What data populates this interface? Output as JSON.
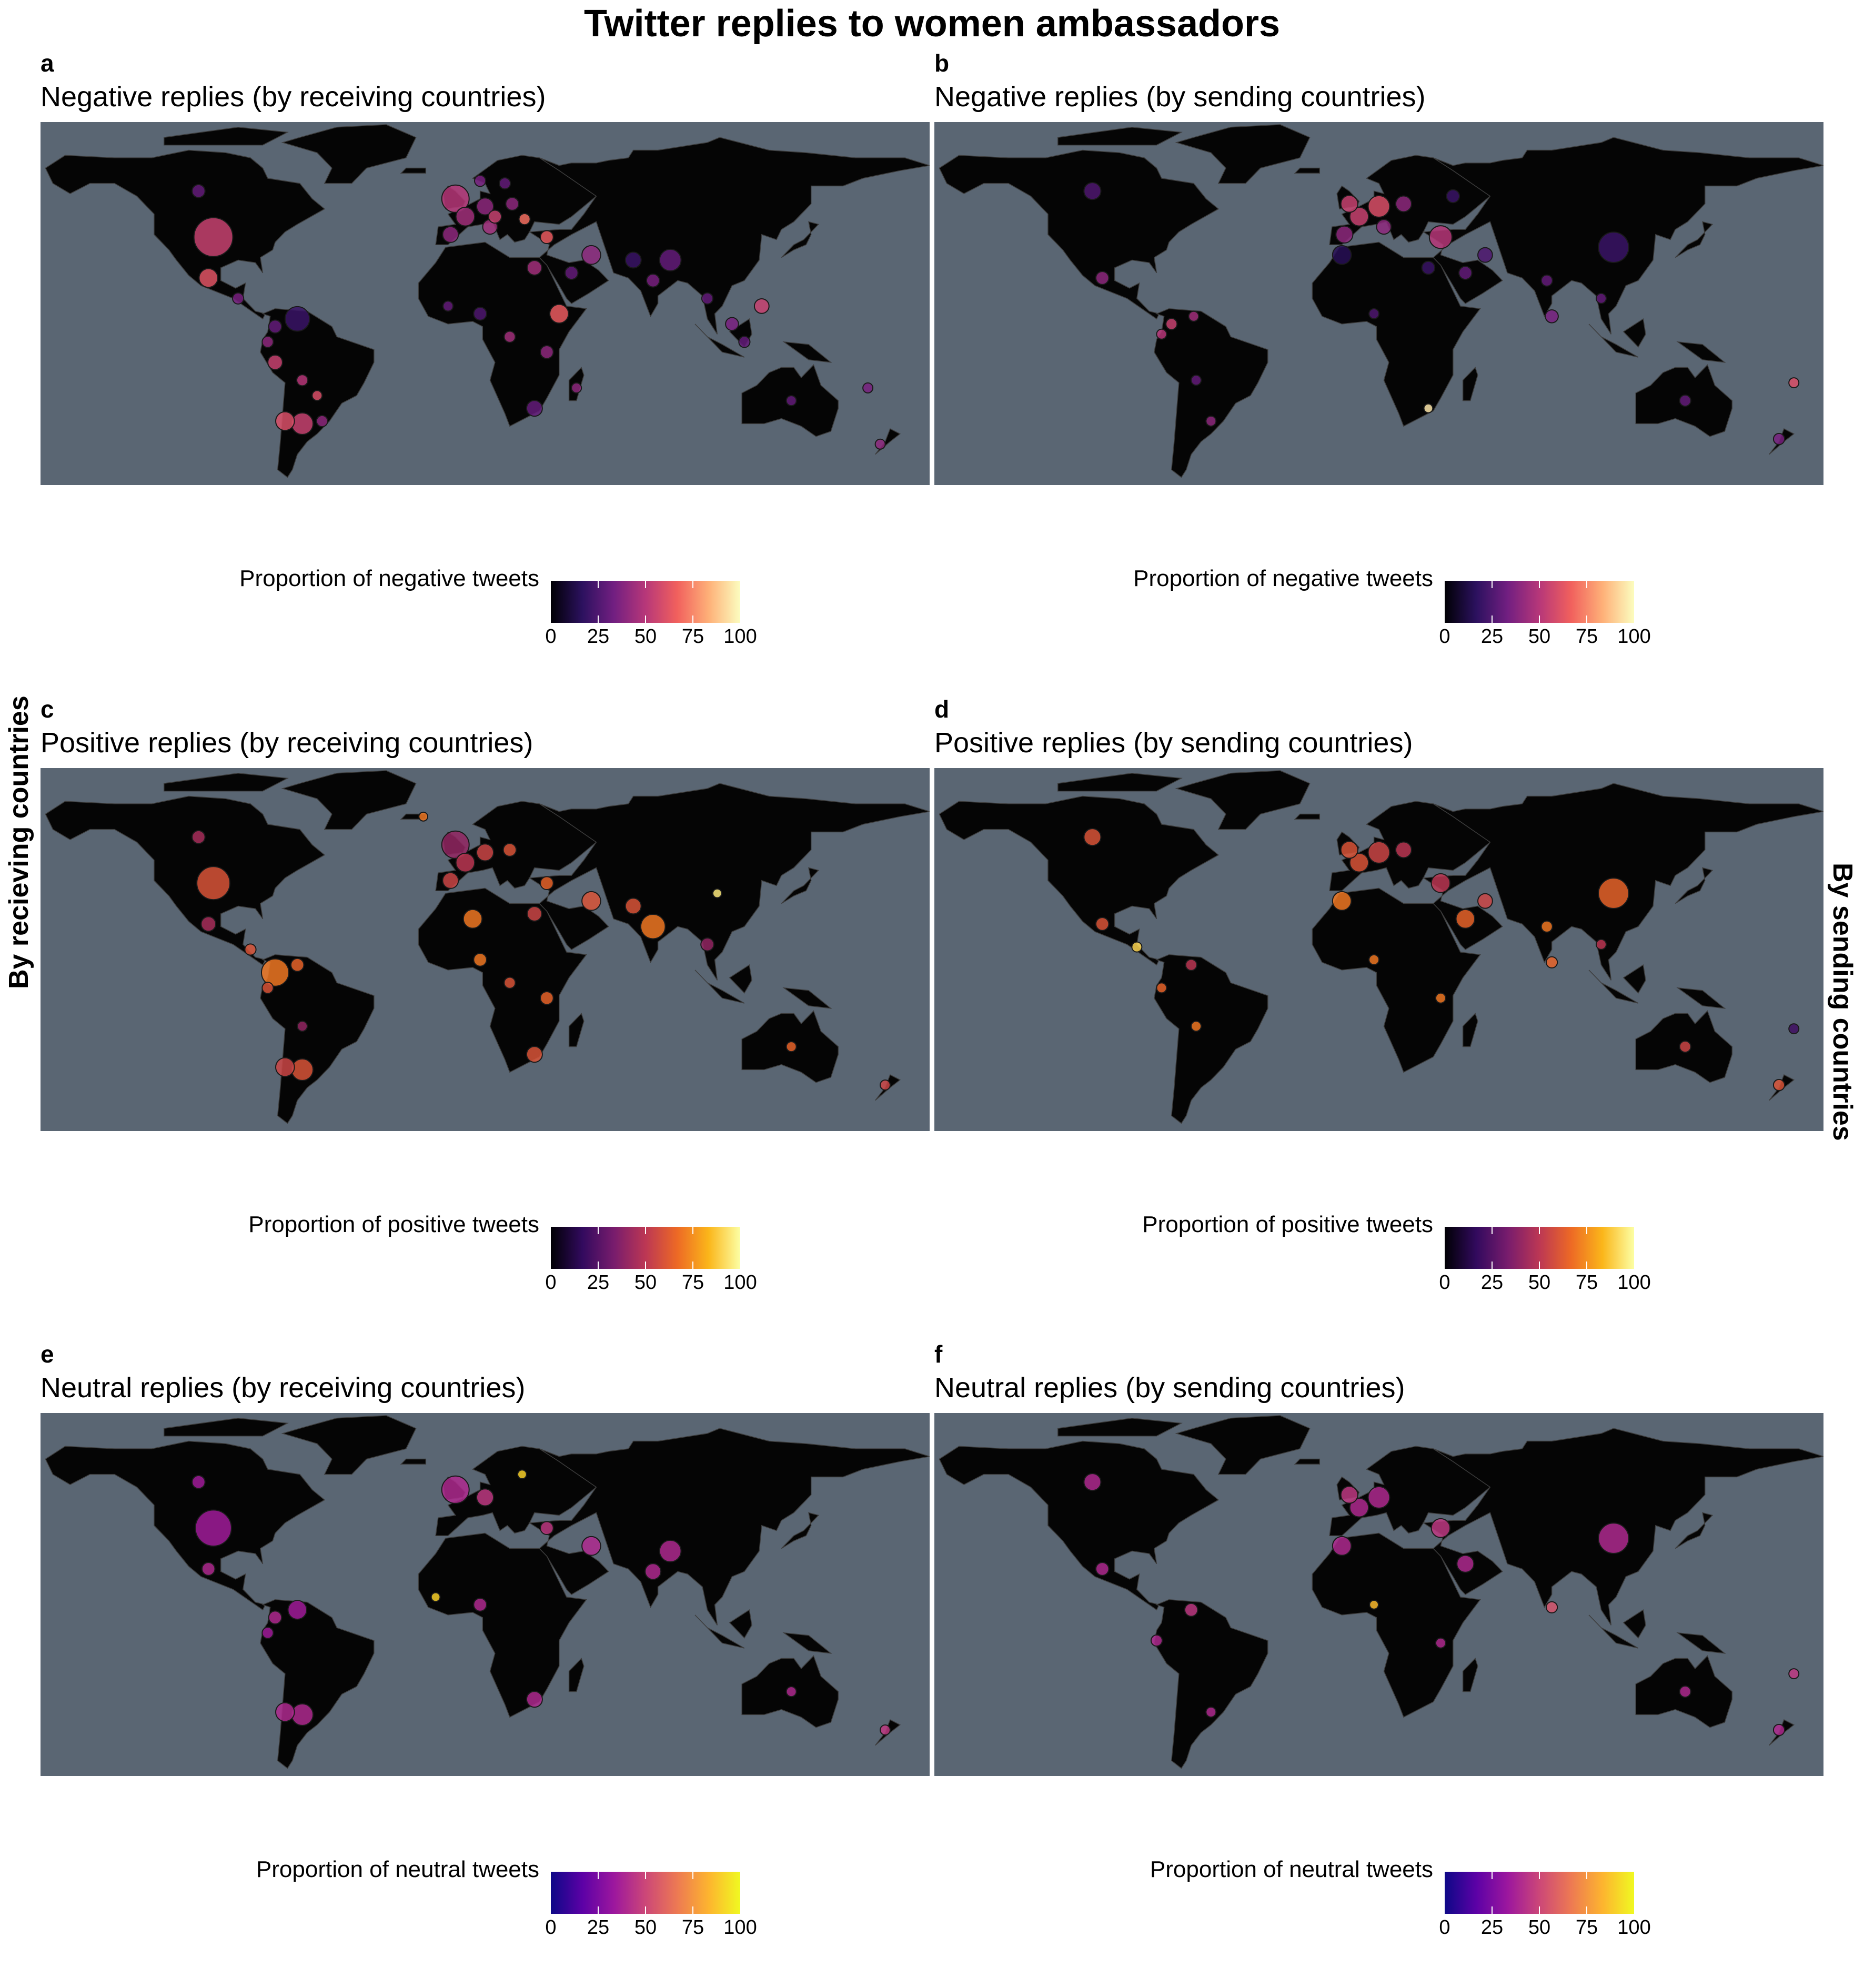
{
  "title": "Twitter replies to women ambassadors",
  "row_labels": {
    "left": "By recieving countries",
    "right": "By sending countries"
  },
  "colors": {
    "ocean": "#5a6673",
    "land": "#050505",
    "border": "#3c3c3c",
    "magma": [
      "#000004",
      "#2c115f",
      "#721f81",
      "#b73779",
      "#f1605d",
      "#feb078",
      "#fcfdbf"
    ],
    "inferno": [
      "#000004",
      "#320a5e",
      "#781c6d",
      "#bc3754",
      "#ed6925",
      "#fbb61a",
      "#fcffa4"
    ],
    "plasma": [
      "#0d0887",
      "#5c01a6",
      "#9c179e",
      "#cc4778",
      "#ed7953",
      "#fdb42f",
      "#f0f921"
    ]
  },
  "panels": [
    {
      "letter": "a",
      "title": "Negative replies (by receiving countries)",
      "palette": "magma",
      "legend_title": "Proportion of negative tweets",
      "ticks": [
        "0",
        "25",
        "50",
        "75",
        "100"
      ],
      "points": [
        {
          "lon": -100,
          "lat": 39,
          "value": 55,
          "size": 60
        },
        {
          "lon": -106,
          "lat": 57,
          "value": 30,
          "size": 15
        },
        {
          "lon": -102,
          "lat": 23,
          "value": 62,
          "size": 25
        },
        {
          "lon": -90,
          "lat": 15,
          "value": 35,
          "size": 12
        },
        {
          "lon": -66,
          "lat": 7,
          "value": 20,
          "size": 35
        },
        {
          "lon": -75,
          "lat": 4,
          "value": 30,
          "size": 15
        },
        {
          "lon": -78,
          "lat": -2,
          "value": 40,
          "size": 12
        },
        {
          "lon": -75,
          "lat": -10,
          "value": 55,
          "size": 18
        },
        {
          "lon": -64,
          "lat": -17,
          "value": 50,
          "size": 12
        },
        {
          "lon": -58,
          "lat": -23,
          "value": 60,
          "size": 10
        },
        {
          "lon": -71,
          "lat": -33,
          "value": 60,
          "size": 25
        },
        {
          "lon": -64,
          "lat": -34,
          "value": 55,
          "size": 30
        },
        {
          "lon": -56,
          "lat": -33,
          "value": 40,
          "size": 12
        },
        {
          "lon": -2,
          "lat": 54,
          "value": 50,
          "size": 40
        },
        {
          "lon": 2,
          "lat": 47,
          "value": 45,
          "size": 25
        },
        {
          "lon": 10,
          "lat": 51,
          "value": 40,
          "size": 22
        },
        {
          "lon": 14,
          "lat": 47,
          "value": 55,
          "size": 15
        },
        {
          "lon": 21,
          "lat": 52,
          "value": 40,
          "size": 15
        },
        {
          "lon": 26,
          "lat": 46,
          "value": 70,
          "size": 12
        },
        {
          "lon": 12,
          "lat": 43,
          "value": 45,
          "size": 18
        },
        {
          "lon": -4,
          "lat": 40,
          "value": 40,
          "size": 20
        },
        {
          "lon": 18,
          "lat": 60,
          "value": 30,
          "size": 12
        },
        {
          "lon": 8,
          "lat": 61,
          "value": 35,
          "size": 12
        },
        {
          "lon": 35,
          "lat": 39,
          "value": 65,
          "size": 15
        },
        {
          "lon": 30,
          "lat": 27,
          "value": 45,
          "size": 18
        },
        {
          "lon": 40,
          "lat": 9,
          "value": 65,
          "size": 25
        },
        {
          "lon": 45,
          "lat": 25,
          "value": 30,
          "size": 15
        },
        {
          "lon": 53,
          "lat": 32,
          "value": 40,
          "size": 25
        },
        {
          "lon": 70,
          "lat": 30,
          "value": 20,
          "size": 20
        },
        {
          "lon": 78,
          "lat": 22,
          "value": 35,
          "size": 15
        },
        {
          "lon": 85,
          "lat": 30,
          "value": 30,
          "size": 30
        },
        {
          "lon": 100,
          "lat": 15,
          "value": 30,
          "size": 12
        },
        {
          "lon": 110,
          "lat": 5,
          "value": 35,
          "size": 15
        },
        {
          "lon": 122,
          "lat": 12,
          "value": 55,
          "size": 18
        },
        {
          "lon": 115,
          "lat": -2,
          "value": 30,
          "size": 12
        },
        {
          "lon": 8,
          "lat": 9,
          "value": 25,
          "size": 15
        },
        {
          "lon": -5,
          "lat": 12,
          "value": 30,
          "size": 10
        },
        {
          "lon": 20,
          "lat": 0,
          "value": 45,
          "size": 12
        },
        {
          "lon": 35,
          "lat": -6,
          "value": 40,
          "size": 15
        },
        {
          "lon": 30,
          "lat": -28,
          "value": 30,
          "size": 20
        },
        {
          "lon": 47,
          "lat": -20,
          "value": 40,
          "size": 10
        },
        {
          "lon": 134,
          "lat": -25,
          "value": 30,
          "size": 10
        },
        {
          "lon": 170,
          "lat": -42,
          "value": 40,
          "size": 10
        },
        {
          "lon": 165,
          "lat": -20,
          "value": 35,
          "size": 10
        }
      ]
    },
    {
      "letter": "b",
      "title": "Negative replies (by sending countries)",
      "palette": "magma",
      "legend_title": "Proportion of negative tweets",
      "ticks": [
        "0",
        "25",
        "50",
        "75",
        "100"
      ],
      "points": [
        {
          "lon": -106,
          "lat": 57,
          "value": 25,
          "size": 22
        },
        {
          "lon": -102,
          "lat": 23,
          "value": 40,
          "size": 15
        },
        {
          "lon": -74,
          "lat": 5,
          "value": 55,
          "size": 12
        },
        {
          "lon": -65,
          "lat": 8,
          "value": 45,
          "size": 10
        },
        {
          "lon": -78,
          "lat": 1,
          "value": 50,
          "size": 10
        },
        {
          "lon": -64,
          "lat": -17,
          "value": 30,
          "size": 10
        },
        {
          "lon": -58,
          "lat": -33,
          "value": 40,
          "size": 10
        },
        {
          "lon": -2,
          "lat": 52,
          "value": 55,
          "size": 22
        },
        {
          "lon": 2,
          "lat": 47,
          "value": 55,
          "size": 25
        },
        {
          "lon": 10,
          "lat": 51,
          "value": 60,
          "size": 30
        },
        {
          "lon": 20,
          "lat": 52,
          "value": 40,
          "size": 20
        },
        {
          "lon": 12,
          "lat": 43,
          "value": 40,
          "size": 18
        },
        {
          "lon": -4,
          "lat": 40,
          "value": 40,
          "size": 22
        },
        {
          "lon": 35,
          "lat": 39,
          "value": 50,
          "size": 32
        },
        {
          "lon": 40,
          "lat": 55,
          "value": 20,
          "size": 15
        },
        {
          "lon": 53,
          "lat": 32,
          "value": 25,
          "size": 18
        },
        {
          "lon": 45,
          "lat": 25,
          "value": 30,
          "size": 15
        },
        {
          "lon": 30,
          "lat": 27,
          "value": 20,
          "size": 15
        },
        {
          "lon": -5,
          "lat": 32,
          "value": 15,
          "size": 25
        },
        {
          "lon": 105,
          "lat": 35,
          "value": 20,
          "size": 45
        },
        {
          "lon": 78,
          "lat": 22,
          "value": 30,
          "size": 12
        },
        {
          "lon": 80,
          "lat": 8,
          "value": 35,
          "size": 15
        },
        {
          "lon": 100,
          "lat": 15,
          "value": 30,
          "size": 10
        },
        {
          "lon": 8,
          "lat": 9,
          "value": 25,
          "size": 10
        },
        {
          "lon": 30,
          "lat": -28,
          "value": 95,
          "size": 8
        },
        {
          "lon": 134,
          "lat": -25,
          "value": 30,
          "size": 12
        },
        {
          "lon": 172,
          "lat": -40,
          "value": 35,
          "size": 12
        },
        {
          "lon": 178,
          "lat": -18,
          "value": 60,
          "size": 10
        }
      ]
    },
    {
      "letter": "c",
      "title": "Positive replies (by receiving countries)",
      "palette": "inferno",
      "legend_title": "Proportion of positive tweets",
      "ticks": [
        "0",
        "25",
        "50",
        "75",
        "100"
      ],
      "points": [
        {
          "lon": -100,
          "lat": 39,
          "value": 60,
          "size": 50
        },
        {
          "lon": -106,
          "lat": 57,
          "value": 45,
          "size": 15
        },
        {
          "lon": -102,
          "lat": 23,
          "value": 45,
          "size": 18
        },
        {
          "lon": -85,
          "lat": 13,
          "value": 60,
          "size": 12
        },
        {
          "lon": -75,
          "lat": 4,
          "value": 70,
          "size": 40
        },
        {
          "lon": -66,
          "lat": 7,
          "value": 65,
          "size": 15
        },
        {
          "lon": -78,
          "lat": -2,
          "value": 60,
          "size": 12
        },
        {
          "lon": -64,
          "lat": -17,
          "value": 40,
          "size": 10
        },
        {
          "lon": -71,
          "lat": -33,
          "value": 55,
          "size": 25
        },
        {
          "lon": -64,
          "lat": -34,
          "value": 60,
          "size": 30
        },
        {
          "lon": -2,
          "lat": 54,
          "value": 40,
          "size": 40
        },
        {
          "lon": 2,
          "lat": 47,
          "value": 50,
          "size": 25
        },
        {
          "lon": 10,
          "lat": 51,
          "value": 55,
          "size": 22
        },
        {
          "lon": 20,
          "lat": 52,
          "value": 60,
          "size": 15
        },
        {
          "lon": -4,
          "lat": 40,
          "value": 55,
          "size": 20
        },
        {
          "lon": 35,
          "lat": 39,
          "value": 65,
          "size": 15
        },
        {
          "lon": 5,
          "lat": 25,
          "value": 70,
          "size": 25
        },
        {
          "lon": 30,
          "lat": 27,
          "value": 55,
          "size": 18
        },
        {
          "lon": 53,
          "lat": 32,
          "value": 60,
          "size": 25
        },
        {
          "lon": 78,
          "lat": 22,
          "value": 70,
          "size": 35
        },
        {
          "lon": 70,
          "lat": 30,
          "value": 60,
          "size": 20
        },
        {
          "lon": 100,
          "lat": 15,
          "value": 40,
          "size": 15
        },
        {
          "lon": 104,
          "lat": 35,
          "value": 95,
          "size": 8
        },
        {
          "lon": 8,
          "lat": 9,
          "value": 70,
          "size": 15
        },
        {
          "lon": 20,
          "lat": 0,
          "value": 60,
          "size": 12
        },
        {
          "lon": 35,
          "lat": -6,
          "value": 65,
          "size": 15
        },
        {
          "lon": 30,
          "lat": -28,
          "value": 60,
          "size": 20
        },
        {
          "lon": 134,
          "lat": -25,
          "value": 65,
          "size": 10
        },
        {
          "lon": 172,
          "lat": -40,
          "value": 55,
          "size": 10
        },
        {
          "lon": -15,
          "lat": 65,
          "value": 70,
          "size": 8
        }
      ]
    },
    {
      "letter": "d",
      "title": "Positive replies (by sending countries)",
      "palette": "inferno",
      "legend_title": "Proportion of positive tweets",
      "ticks": [
        "0",
        "25",
        "50",
        "75",
        "100"
      ],
      "points": [
        {
          "lon": -106,
          "lat": 57,
          "value": 60,
          "size": 22
        },
        {
          "lon": -102,
          "lat": 23,
          "value": 60,
          "size": 15
        },
        {
          "lon": -88,
          "lat": 14,
          "value": 90,
          "size": 10
        },
        {
          "lon": -66,
          "lat": 7,
          "value": 50,
          "size": 12
        },
        {
          "lon": -78,
          "lat": -2,
          "value": 65,
          "size": 10
        },
        {
          "lon": -64,
          "lat": -17,
          "value": 70,
          "size": 10
        },
        {
          "lon": -2,
          "lat": 52,
          "value": 60,
          "size": 22
        },
        {
          "lon": 2,
          "lat": 47,
          "value": 60,
          "size": 25
        },
        {
          "lon": 10,
          "lat": 51,
          "value": 55,
          "size": 30
        },
        {
          "lon": 20,
          "lat": 52,
          "value": 50,
          "size": 20
        },
        {
          "lon": -5,
          "lat": 32,
          "value": 70,
          "size": 25
        },
        {
          "lon": 45,
          "lat": 25,
          "value": 65,
          "size": 25
        },
        {
          "lon": 35,
          "lat": 39,
          "value": 50,
          "size": 25
        },
        {
          "lon": 53,
          "lat": 32,
          "value": 55,
          "size": 18
        },
        {
          "lon": 105,
          "lat": 35,
          "value": 65,
          "size": 45
        },
        {
          "lon": 78,
          "lat": 22,
          "value": 70,
          "size": 12
        },
        {
          "lon": 80,
          "lat": 8,
          "value": 65,
          "size": 12
        },
        {
          "lon": 100,
          "lat": 15,
          "value": 50,
          "size": 10
        },
        {
          "lon": 8,
          "lat": 9,
          "value": 70,
          "size": 10
        },
        {
          "lon": 35,
          "lat": -6,
          "value": 70,
          "size": 10
        },
        {
          "lon": 134,
          "lat": -25,
          "value": 55,
          "size": 12
        },
        {
          "lon": 172,
          "lat": -40,
          "value": 60,
          "size": 12
        },
        {
          "lon": 178,
          "lat": -18,
          "value": 20,
          "size": 10
        }
      ]
    },
    {
      "letter": "e",
      "title": "Neutral replies (by receiving countries)",
      "palette": "plasma",
      "legend_title": "Proportion of neutral tweets",
      "ticks": [
        "0",
        "25",
        "50",
        "75",
        "100"
      ],
      "points": [
        {
          "lon": -100,
          "lat": 39,
          "value": 35,
          "size": 55
        },
        {
          "lon": -106,
          "lat": 57,
          "value": 35,
          "size": 15
        },
        {
          "lon": -102,
          "lat": 23,
          "value": 40,
          "size": 15
        },
        {
          "lon": -66,
          "lat": 7,
          "value": 35,
          "size": 25
        },
        {
          "lon": -75,
          "lat": 4,
          "value": 40,
          "size": 15
        },
        {
          "lon": -78,
          "lat": -2,
          "value": 35,
          "size": 12
        },
        {
          "lon": -71,
          "lat": -33,
          "value": 40,
          "size": 25
        },
        {
          "lon": -64,
          "lat": -34,
          "value": 40,
          "size": 30
        },
        {
          "lon": -2,
          "lat": 54,
          "value": 40,
          "size": 40
        },
        {
          "lon": 10,
          "lat": 51,
          "value": 45,
          "size": 22
        },
        {
          "lon": 25,
          "lat": 60,
          "value": 90,
          "size": 8
        },
        {
          "lon": 35,
          "lat": 39,
          "value": 45,
          "size": 15
        },
        {
          "lon": 53,
          "lat": 32,
          "value": 40,
          "size": 25
        },
        {
          "lon": 78,
          "lat": 22,
          "value": 40,
          "size": 20
        },
        {
          "lon": 85,
          "lat": 30,
          "value": 40,
          "size": 30
        },
        {
          "lon": -10,
          "lat": 12,
          "value": 90,
          "size": 8
        },
        {
          "lon": 8,
          "lat": 9,
          "value": 40,
          "size": 15
        },
        {
          "lon": 30,
          "lat": -28,
          "value": 40,
          "size": 20
        },
        {
          "lon": 134,
          "lat": -25,
          "value": 40,
          "size": 10
        },
        {
          "lon": 172,
          "lat": -40,
          "value": 45,
          "size": 10
        }
      ]
    },
    {
      "letter": "f",
      "title": "Neutral replies (by sending countries)",
      "palette": "plasma",
      "legend_title": "Proportion of neutral tweets",
      "ticks": [
        "0",
        "25",
        "50",
        "75",
        "100"
      ],
      "points": [
        {
          "lon": -106,
          "lat": 57,
          "value": 40,
          "size": 22
        },
        {
          "lon": -102,
          "lat": 23,
          "value": 40,
          "size": 15
        },
        {
          "lon": -66,
          "lat": 7,
          "value": 45,
          "size": 15
        },
        {
          "lon": -80,
          "lat": -5,
          "value": 40,
          "size": 12
        },
        {
          "lon": -58,
          "lat": -33,
          "value": 40,
          "size": 10
        },
        {
          "lon": -2,
          "lat": 52,
          "value": 45,
          "size": 22
        },
        {
          "lon": 10,
          "lat": 51,
          "value": 40,
          "size": 30
        },
        {
          "lon": 2,
          "lat": 47,
          "value": 40,
          "size": 25
        },
        {
          "lon": -5,
          "lat": 32,
          "value": 40,
          "size": 25
        },
        {
          "lon": 35,
          "lat": 39,
          "value": 45,
          "size": 25
        },
        {
          "lon": 45,
          "lat": 25,
          "value": 40,
          "size": 22
        },
        {
          "lon": 105,
          "lat": 35,
          "value": 40,
          "size": 45
        },
        {
          "lon": 80,
          "lat": 8,
          "value": 55,
          "size": 12
        },
        {
          "lon": 8,
          "lat": 9,
          "value": 85,
          "size": 8
        },
        {
          "lon": 35,
          "lat": -6,
          "value": 40,
          "size": 10
        },
        {
          "lon": 134,
          "lat": -25,
          "value": 40,
          "size": 12
        },
        {
          "lon": 172,
          "lat": -40,
          "value": 40,
          "size": 12
        },
        {
          "lon": 178,
          "lat": -18,
          "value": 45,
          "size": 10
        }
      ]
    }
  ]
}
